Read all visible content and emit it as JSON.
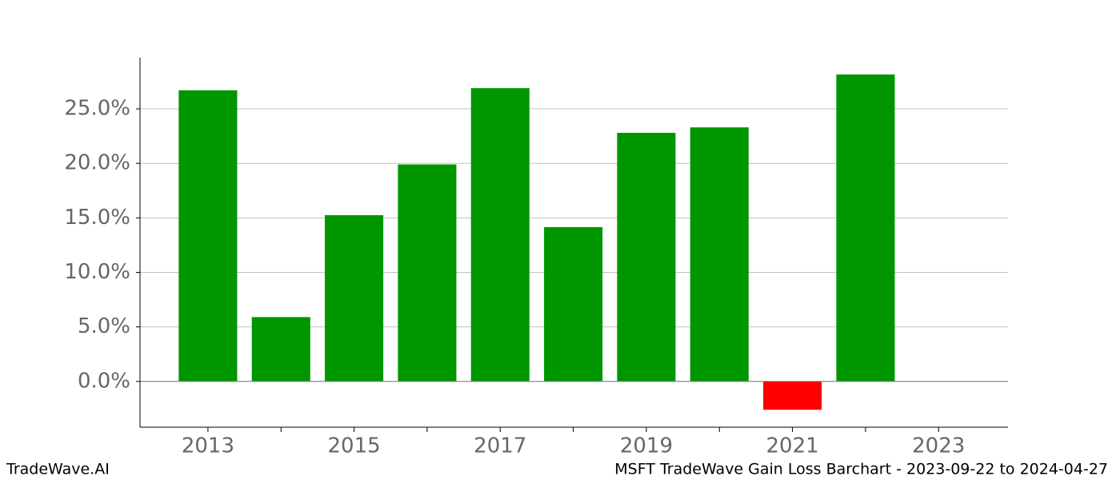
{
  "chart_data": {
    "type": "bar",
    "title": "MSFT TradeWave Gain Loss Barchart - 2023-09-22 to 2024-04-27",
    "watermark": "TradeWave.AI",
    "x": [
      2013,
      2014,
      2015,
      2016,
      2017,
      2018,
      2019,
      2020,
      2021,
      2022
    ],
    "values": [
      26.7,
      5.9,
      15.25,
      19.9,
      26.9,
      14.15,
      22.8,
      23.3,
      -2.6,
      28.15
    ],
    "color_positive": "#009600",
    "color_negative": "#ff0000",
    "xlim": [
      2012.07,
      2023.95
    ],
    "xticks": [
      2013,
      2015,
      2017,
      2019,
      2021,
      2023
    ],
    "xminor_ticks": [
      2014,
      2016,
      2018,
      2020,
      2022
    ],
    "ylim": [
      -4.2,
      29.7
    ],
    "yticks": [
      {
        "value": 0,
        "label": "0.0%"
      },
      {
        "value": 5,
        "label": "5.0%"
      },
      {
        "value": 10,
        "label": "10.0%"
      },
      {
        "value": 15,
        "label": "15.0%"
      },
      {
        "value": 20,
        "label": "20.0%"
      },
      {
        "value": 25,
        "label": "25.0%"
      }
    ],
    "grid": true
  }
}
